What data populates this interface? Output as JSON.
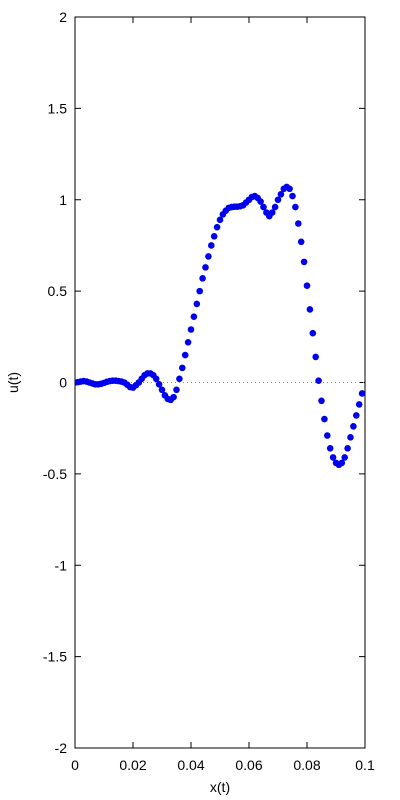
{
  "chart_data": {
    "type": "scatter",
    "title": "",
    "xlabel": "x(t)",
    "ylabel": "u(t)",
    "xlim": [
      0,
      0.1
    ],
    "ylim": [
      -2,
      2
    ],
    "x_ticks": [
      0,
      0.02,
      0.04,
      0.06,
      0.08,
      0.1
    ],
    "x_tick_labels": [
      "0",
      "0.02",
      "0.04",
      "0.06",
      "0.08",
      "0.1"
    ],
    "y_ticks": [
      -2,
      -1.5,
      -1,
      -0.5,
      0,
      0.5,
      1,
      1.5,
      2
    ],
    "y_tick_labels": [
      "-2",
      "-1.5",
      "-1",
      "-0.5",
      "0",
      "0.5",
      "1",
      "1.5",
      "2"
    ],
    "grid": false,
    "zero_line": true,
    "marker_color": "#0000ee",
    "zero_line_color": "#888888",
    "series": [
      {
        "x": [
          0.0,
          0.001,
          0.002,
          0.003,
          0.004,
          0.005,
          0.006,
          0.007,
          0.008,
          0.009,
          0.01,
          0.011,
          0.012,
          0.013,
          0.014,
          0.015,
          0.016,
          0.017,
          0.018,
          0.019,
          0.02,
          0.021,
          0.022,
          0.023,
          0.024,
          0.025,
          0.026,
          0.027,
          0.028,
          0.029,
          0.03,
          0.031,
          0.032,
          0.033,
          0.034,
          0.035,
          0.036,
          0.037,
          0.038,
          0.039,
          0.04,
          0.041,
          0.042,
          0.043,
          0.044,
          0.045,
          0.046,
          0.047,
          0.048,
          0.049,
          0.05,
          0.051,
          0.052,
          0.053,
          0.054,
          0.055,
          0.056,
          0.057,
          0.058,
          0.059,
          0.06,
          0.061,
          0.062,
          0.063,
          0.064,
          0.065,
          0.066,
          0.067,
          0.068,
          0.069,
          0.07,
          0.071,
          0.072,
          0.073,
          0.074,
          0.075,
          0.076,
          0.077,
          0.078,
          0.079,
          0.08,
          0.081,
          0.082,
          0.083,
          0.084,
          0.085,
          0.086,
          0.087,
          0.088,
          0.089,
          0.09,
          0.091,
          0.092,
          0.093,
          0.094,
          0.095,
          0.096,
          0.097,
          0.098,
          0.099
        ],
        "y": [
          0.0,
          0.002,
          0.005,
          0.008,
          0.005,
          0.0,
          -0.005,
          -0.01,
          -0.01,
          -0.007,
          -0.002,
          0.004,
          0.008,
          0.01,
          0.01,
          0.008,
          0.005,
          0.0,
          -0.012,
          -0.025,
          -0.028,
          -0.015,
          0.0,
          0.02,
          0.04,
          0.05,
          0.05,
          0.04,
          0.02,
          -0.01,
          -0.04,
          -0.07,
          -0.09,
          -0.095,
          -0.08,
          -0.04,
          0.02,
          0.08,
          0.15,
          0.22,
          0.29,
          0.36,
          0.43,
          0.5,
          0.57,
          0.63,
          0.69,
          0.75,
          0.8,
          0.85,
          0.89,
          0.92,
          0.94,
          0.955,
          0.96,
          0.962,
          0.962,
          0.965,
          0.97,
          0.985,
          1.0,
          1.015,
          1.02,
          1.01,
          0.99,
          0.96,
          0.93,
          0.91,
          0.93,
          0.96,
          1.0,
          1.03,
          1.06,
          1.07,
          1.06,
          1.02,
          0.96,
          0.87,
          0.77,
          0.66,
          0.53,
          0.4,
          0.27,
          0.14,
          0.01,
          -0.1,
          -0.2,
          -0.29,
          -0.36,
          -0.41,
          -0.44,
          -0.45,
          -0.44,
          -0.41,
          -0.36,
          -0.3,
          -0.24,
          -0.18,
          -0.12,
          -0.06
        ]
      }
    ]
  }
}
